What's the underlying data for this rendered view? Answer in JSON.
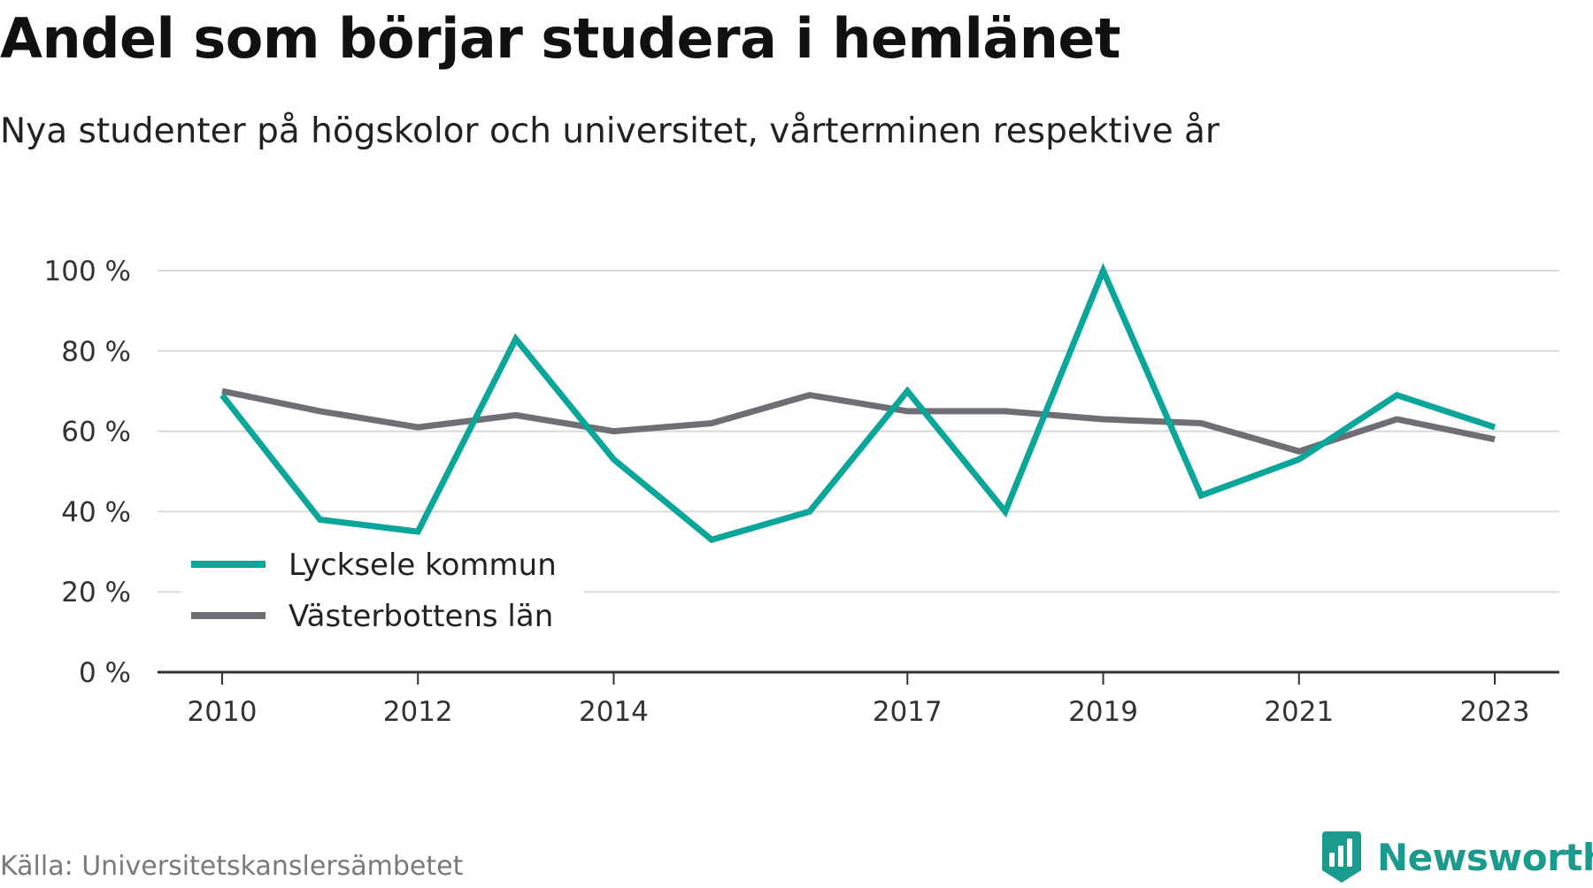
{
  "title": "Andel som börjar studera i hemlänet",
  "subtitle": "Nya studenter på högskolor och universitet, vårterminen respektive år",
  "source": "Källa: Universitetskanslersämbetet",
  "brand": {
    "name": "Newsworthy",
    "icon": "newsworthy-logo-icon",
    "color": "#1b9a8e"
  },
  "chart_data": {
    "type": "line",
    "x": [
      2010,
      2011,
      2012,
      2013,
      2014,
      2015,
      2016,
      2017,
      2018,
      2019,
      2020,
      2021,
      2022,
      2023
    ],
    "x_tick_labels": [
      "2010",
      "2012",
      "2014",
      "2017",
      "2019",
      "2021",
      "2023"
    ],
    "y_tick_labels": [
      "0 %",
      "20 %",
      "40 %",
      "60 %",
      "80 %",
      "100 %"
    ],
    "ylim": [
      0,
      100
    ],
    "y_ticks": [
      0,
      20,
      40,
      60,
      80,
      100
    ],
    "grid": true,
    "legend_position": "bottom-left",
    "series": [
      {
        "name": "Lycksele kommun",
        "color": "#0aa699",
        "values": [
          69,
          38,
          35,
          83,
          53,
          33,
          40,
          70,
          40,
          100,
          44,
          53,
          69,
          61
        ]
      },
      {
        "name": "Västerbottens län",
        "color": "#6f6e74",
        "values": [
          70,
          65,
          61,
          64,
          60,
          62,
          69,
          65,
          65,
          63,
          62,
          55,
          63,
          58
        ]
      }
    ]
  }
}
